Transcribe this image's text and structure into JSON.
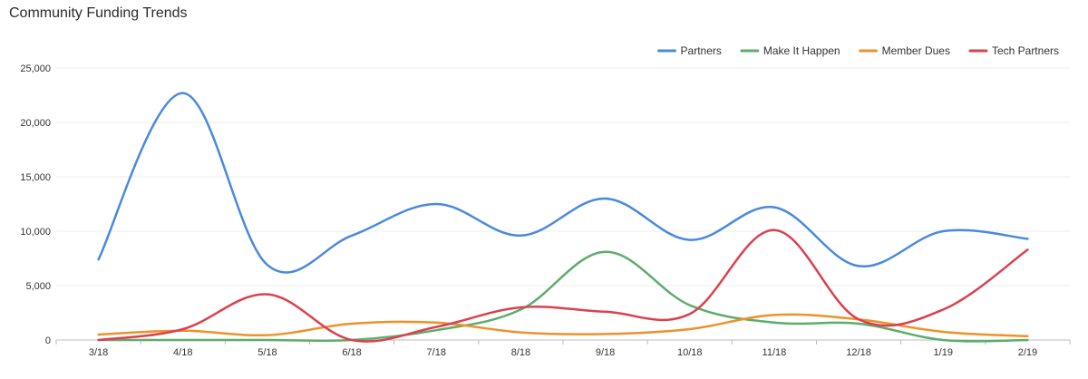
{
  "chart_data": {
    "type": "line",
    "title": "Community Funding Trends",
    "categories": [
      "3/18",
      "4/18",
      "5/18",
      "6/18",
      "7/18",
      "8/18",
      "9/18",
      "10/18",
      "11/18",
      "12/18",
      "1/19",
      "2/19"
    ],
    "ylim": [
      0,
      25000
    ],
    "yticks": [
      0,
      5000,
      10000,
      15000,
      20000,
      25000
    ],
    "ytick_labels": [
      "0",
      "5,000",
      "10,000",
      "15,000",
      "20,000",
      "25,000"
    ],
    "grid": true,
    "legend_position": "top-right",
    "series": [
      {
        "name": "Partners",
        "color": "#4a89dc",
        "values": [
          7400,
          22700,
          6900,
          9600,
          12500,
          9600,
          13000,
          9200,
          12200,
          6800,
          10000,
          9300
        ]
      },
      {
        "name": "Make It Happen",
        "color": "#5cad6b",
        "values": [
          0,
          0,
          0,
          0,
          900,
          2800,
          8100,
          3200,
          1600,
          1500,
          0,
          0
        ]
      },
      {
        "name": "Member Dues",
        "color": "#ef9129",
        "values": [
          500,
          850,
          450,
          1500,
          1600,
          700,
          550,
          1000,
          2300,
          1900,
          750,
          350
        ]
      },
      {
        "name": "Tech Partners",
        "color": "#d9414f",
        "values": [
          0,
          1000,
          4200,
          0,
          1200,
          3000,
          2600,
          2400,
          10100,
          1900,
          2800,
          8300
        ]
      }
    ]
  }
}
